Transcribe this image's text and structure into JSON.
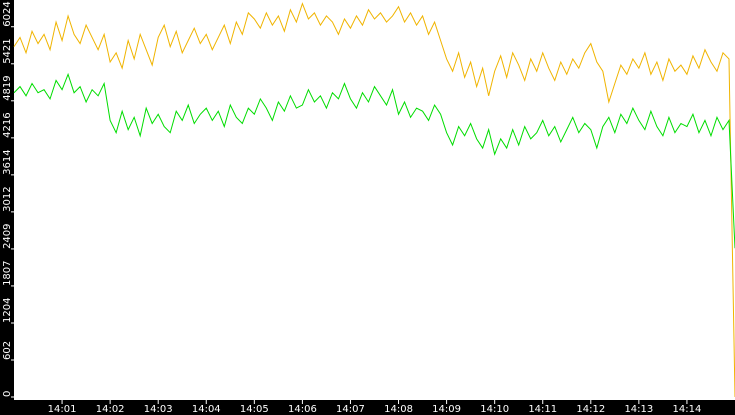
{
  "chart_data": {
    "type": "line",
    "x": [
      0,
      0.125,
      0.25,
      0.375,
      0.5,
      0.625,
      0.75,
      0.875,
      1,
      1.125,
      1.25,
      1.375,
      1.5,
      1.625,
      1.75,
      1.875,
      2,
      2.125,
      2.25,
      2.375,
      2.5,
      2.625,
      2.75,
      2.875,
      3,
      3.125,
      3.25,
      3.375,
      3.5,
      3.625,
      3.75,
      3.875,
      4,
      4.125,
      4.25,
      4.375,
      4.5,
      4.625,
      4.75,
      4.875,
      5,
      5.125,
      5.25,
      5.375,
      5.5,
      5.625,
      5.75,
      5.875,
      6,
      6.125,
      6.25,
      6.375,
      6.5,
      6.625,
      6.75,
      6.875,
      7,
      7.125,
      7.25,
      7.375,
      7.5,
      7.625,
      7.75,
      7.875,
      8,
      8.125,
      8.25,
      8.375,
      8.5,
      8.625,
      8.75,
      8.875,
      9,
      9.125,
      9.25,
      9.375,
      9.5,
      9.625,
      9.75,
      9.875,
      10,
      10.125,
      10.25,
      10.375,
      10.5,
      10.625,
      10.75,
      10.875,
      11,
      11.125,
      11.25,
      11.375,
      11.5,
      11.625,
      11.75,
      11.875,
      12,
      12.125,
      12.25,
      12.375,
      12.5,
      12.625,
      12.75,
      12.875,
      13,
      13.125,
      13.25,
      13.375,
      13.5,
      13.625,
      13.75,
      13.875,
      14,
      14.125,
      14.25,
      14.375,
      14.5,
      14.625,
      14.75,
      14.875,
      15
    ],
    "series": [
      {
        "color": "#f0b400",
        "values": [
          5700,
          5850,
          5600,
          5950,
          5750,
          5900,
          5650,
          6100,
          5800,
          6200,
          5900,
          5750,
          6050,
          5850,
          5650,
          5900,
          5450,
          5600,
          5350,
          5800,
          5500,
          5900,
          5650,
          5400,
          5850,
          6050,
          5700,
          5950,
          5600,
          5800,
          6000,
          5750,
          5900,
          5650,
          5850,
          6050,
          5750,
          6100,
          5900,
          6250,
          6150,
          6000,
          6250,
          6050,
          6200,
          5950,
          6300,
          6100,
          6400,
          6150,
          6250,
          6050,
          6200,
          6100,
          5900,
          6150,
          6000,
          6200,
          6050,
          6300,
          6150,
          6250,
          6100,
          6200,
          6350,
          6100,
          6250,
          6050,
          6200,
          5900,
          6100,
          5800,
          5500,
          5300,
          5600,
          5200,
          5450,
          5050,
          5350,
          4900,
          5300,
          5550,
          5200,
          5600,
          5400,
          5150,
          5500,
          5300,
          5600,
          5350,
          5150,
          5450,
          5250,
          5500,
          5350,
          5600,
          5750,
          5450,
          5300,
          4800,
          5100,
          5400,
          5250,
          5500,
          5350,
          5600,
          5250,
          5450,
          5150,
          5500,
          5300,
          5400,
          5250,
          5550,
          5350,
          5650,
          5450,
          5300,
          5600,
          5500,
          0
        ]
      },
      {
        "color": "#00dd00",
        "values": [
          4950,
          5050,
          4900,
          5100,
          4950,
          5000,
          4850,
          5150,
          5000,
          5250,
          4950,
          5050,
          4800,
          5000,
          4900,
          5100,
          4500,
          4300,
          4650,
          4350,
          4550,
          4250,
          4700,
          4450,
          4600,
          4400,
          4300,
          4650,
          4500,
          4750,
          4450,
          4600,
          4700,
          4500,
          4650,
          4400,
          4750,
          4550,
          4450,
          4700,
          4600,
          4850,
          4700,
          4500,
          4800,
          4650,
          4900,
          4700,
          4750,
          5000,
          4800,
          4900,
          4700,
          4950,
          4850,
          5100,
          4850,
          4700,
          4950,
          4800,
          5050,
          4900,
          4750,
          5000,
          4600,
          4800,
          4550,
          4700,
          4650,
          4500,
          4750,
          4600,
          4300,
          4100,
          4400,
          4250,
          4450,
          4200,
          4050,
          4350,
          3950,
          4200,
          4050,
          4350,
          4100,
          4400,
          4200,
          4300,
          4500,
          4250,
          4400,
          4150,
          4350,
          4550,
          4300,
          4450,
          4350,
          4050,
          4400,
          4550,
          4300,
          4600,
          4450,
          4700,
          4500,
          4350,
          4650,
          4400,
          4250,
          4550,
          4300,
          4450,
          4400,
          4600,
          4300,
          4500,
          4250,
          4550,
          4350,
          4500,
          2420
        ]
      }
    ],
    "xlim": [
      0,
      15
    ],
    "xticks": [
      {
        "value": 1,
        "label": "14:01"
      },
      {
        "value": 2,
        "label": "14:02"
      },
      {
        "value": 3,
        "label": "14:03"
      },
      {
        "value": 4,
        "label": "14:04"
      },
      {
        "value": 5,
        "label": "14:05"
      },
      {
        "value": 6,
        "label": "14:06"
      },
      {
        "value": 7,
        "label": "14:07"
      },
      {
        "value": 8,
        "label": "14:08"
      },
      {
        "value": 9,
        "label": "14:09"
      },
      {
        "value": 10,
        "label": "14:10"
      },
      {
        "value": 11,
        "label": "14:11"
      },
      {
        "value": 12,
        "label": "14:12"
      },
      {
        "value": 13,
        "label": "14:13"
      },
      {
        "value": 14,
        "label": "14:14"
      }
    ],
    "ylim": [
      0,
      6459
    ],
    "yticks": [
      0,
      602,
      1204,
      1807,
      2409,
      3012,
      3614,
      4216,
      4819,
      5421,
      6024
    ]
  }
}
